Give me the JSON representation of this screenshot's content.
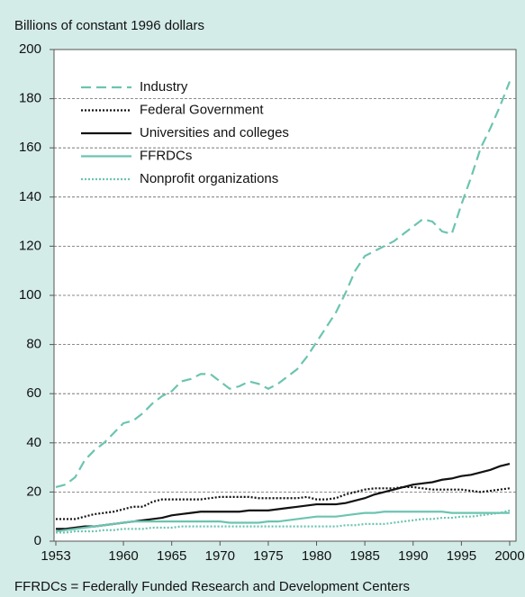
{
  "chart_data": {
    "type": "line",
    "ylabel": "Billions of constant 1996 dollars",
    "note": "FFRDCs = Federally Funded Research and Development Centers",
    "x": [
      1953,
      1954,
      1955,
      1956,
      1957,
      1958,
      1959,
      1960,
      1961,
      1962,
      1963,
      1964,
      1965,
      1966,
      1967,
      1968,
      1969,
      1970,
      1971,
      1972,
      1973,
      1974,
      1975,
      1976,
      1977,
      1978,
      1979,
      1980,
      1981,
      1982,
      1983,
      1984,
      1985,
      1986,
      1987,
      1988,
      1989,
      1990,
      1991,
      1992,
      1993,
      1994,
      1995,
      1996,
      1997,
      1998,
      1999,
      2000
    ],
    "xlim": [
      1953,
      2000
    ],
    "xticks": [
      1953,
      1960,
      1965,
      1970,
      1975,
      1980,
      1985,
      1990,
      1995,
      2000
    ],
    "ylim": [
      0,
      200
    ],
    "yticks": [
      0,
      20,
      40,
      60,
      80,
      100,
      120,
      140,
      160,
      180,
      200
    ],
    "grid": true,
    "legend": "upper left",
    "series": [
      {
        "name": "Industry",
        "color": "#6cc4b0",
        "style": "dashed",
        "values": [
          22,
          23,
          26,
          33,
          37,
          40,
          44,
          48,
          49,
          52,
          56,
          59,
          61,
          65,
          66,
          68,
          68,
          65,
          62,
          63,
          65,
          64,
          62,
          64,
          67,
          70,
          75,
          81,
          87,
          93,
          101,
          110,
          116,
          118,
          120,
          122,
          125,
          128,
          131,
          130,
          126,
          125,
          137,
          148,
          160,
          168,
          177,
          187
        ]
      },
      {
        "name": "Federal Government",
        "color": "#111111",
        "style": "dotted",
        "values": [
          9,
          9,
          9,
          10,
          11,
          11.5,
          12,
          13,
          14,
          14,
          16,
          17,
          17,
          17,
          17,
          17,
          17.5,
          18,
          18,
          18,
          18,
          17.5,
          17.5,
          17.5,
          17.5,
          17.5,
          18,
          17,
          17,
          17.5,
          19,
          20,
          21,
          21.5,
          21.5,
          21.5,
          22,
          22,
          21.5,
          21,
          21,
          21,
          21,
          20.5,
          20,
          20.5,
          21,
          21.5
        ]
      },
      {
        "name": "Universities and colleges",
        "color": "#111111",
        "style": "solid",
        "values": [
          5,
          5,
          5.5,
          6,
          6,
          6.5,
          7,
          7.5,
          8,
          8.5,
          9,
          9.5,
          10.5,
          11,
          11.5,
          12,
          12,
          12,
          12,
          12,
          12.5,
          12.5,
          12.5,
          13,
          13.5,
          14,
          14.5,
          15,
          15,
          15,
          15.5,
          16.5,
          17.5,
          19,
          20,
          21,
          22,
          23,
          23.5,
          24,
          25,
          25.5,
          26.5,
          27,
          28,
          29,
          30.5,
          31.5
        ]
      },
      {
        "name": "FFRDCs",
        "color": "#6cc4b0",
        "style": "solid",
        "values": [
          4,
          4.5,
          5,
          5.5,
          6,
          6.5,
          7,
          7.5,
          8,
          8,
          8,
          8,
          8,
          8,
          8,
          8,
          8,
          8,
          7.5,
          7.5,
          7.5,
          7.5,
          8,
          8,
          8.5,
          9,
          9.5,
          10,
          10,
          10,
          10.5,
          11,
          11.5,
          11.5,
          12,
          12,
          12,
          12,
          12,
          12,
          12,
          11.5,
          11.5,
          11.5,
          11.5,
          11.5,
          11.5,
          11.5
        ]
      },
      {
        "name": "Nonprofit organizations",
        "color": "#6cc4b0",
        "style": "dotted",
        "values": [
          3.5,
          3.5,
          4,
          4,
          4,
          4.5,
          4.5,
          5,
          5,
          5,
          5.5,
          5.5,
          5.5,
          6,
          6,
          6,
          6,
          6,
          6,
          6,
          6,
          6,
          6,
          6,
          6,
          6,
          6,
          6,
          6,
          6,
          6.5,
          6.5,
          7,
          7,
          7,
          7.5,
          8,
          8.5,
          9,
          9,
          9.5,
          9.5,
          10,
          10,
          10.5,
          11,
          11.5,
          12.5
        ]
      }
    ]
  }
}
